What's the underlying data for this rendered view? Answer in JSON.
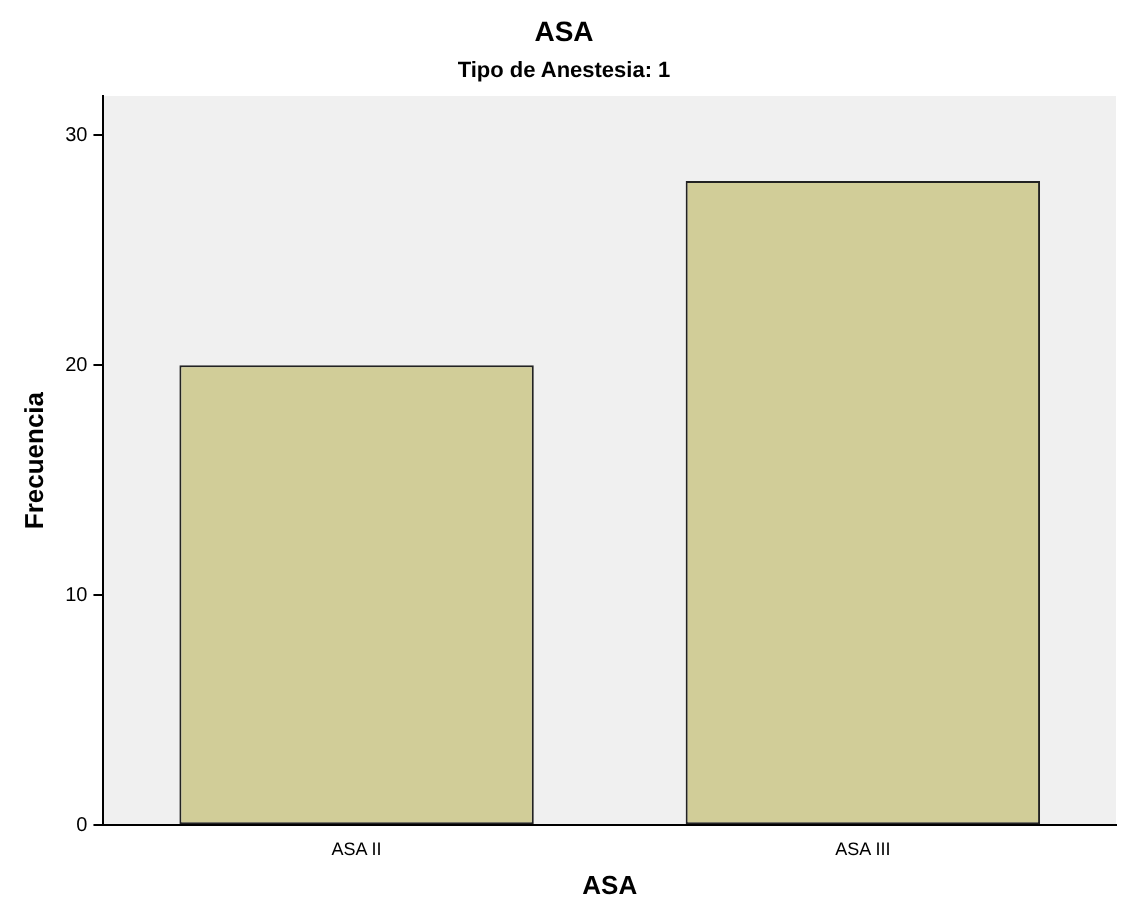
{
  "chart_data": {
    "type": "bar",
    "title": "ASA",
    "subtitle": "Tipo de Anestesia: 1",
    "xlabel": "ASA",
    "ylabel": "Frecuencia",
    "categories": [
      "ASA II",
      "ASA III"
    ],
    "values": [
      20,
      28
    ],
    "color": "#d1cd98",
    "ylim": [
      0,
      31.7
    ],
    "yticks": [
      0,
      10,
      20,
      30
    ],
    "grid": false,
    "legend": false
  }
}
